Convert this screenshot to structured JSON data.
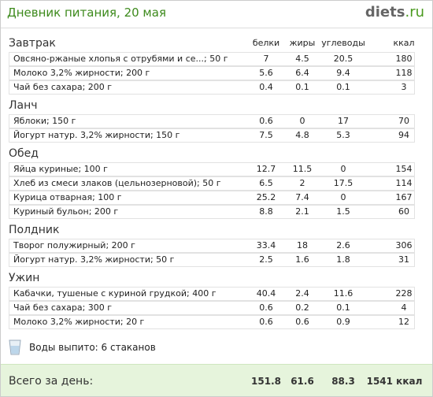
{
  "header": {
    "title": "Дневник питания, 20 мая",
    "logo_main": "diets",
    "logo_tld": ".ru"
  },
  "columns": [
    "белки",
    "жиры",
    "углеводы",
    "ккал"
  ],
  "meals": [
    {
      "name": "Завтрак",
      "items": [
        {
          "food": "Овсяно-ржаные хлопья с отрубями и се...; 50 г",
          "values": [
            "7",
            "4.5",
            "20.5",
            "180"
          ]
        },
        {
          "food": "Молоко 3,2% жирности; 200 г",
          "values": [
            "5.6",
            "6.4",
            "9.4",
            "118"
          ]
        },
        {
          "food": "Чай без сахара; 200 г",
          "values": [
            "0.4",
            "0.1",
            "0.1",
            "3"
          ]
        }
      ]
    },
    {
      "name": "Ланч",
      "items": [
        {
          "food": "Яблоки; 150 г",
          "values": [
            "0.6",
            "0",
            "17",
            "70"
          ]
        },
        {
          "food": "Йогурт натур. 3,2% жирности; 150 г",
          "values": [
            "7.5",
            "4.8",
            "5.3",
            "94"
          ]
        }
      ]
    },
    {
      "name": "Обед",
      "items": [
        {
          "food": "Яйца куриные; 100 г",
          "values": [
            "12.7",
            "11.5",
            "0",
            "154"
          ]
        },
        {
          "food": "Хлеб из смеси злаков (цельнозерновой); 50 г",
          "values": [
            "6.5",
            "2",
            "17.5",
            "114"
          ]
        },
        {
          "food": "Курица отварная; 100 г",
          "values": [
            "25.2",
            "7.4",
            "0",
            "167"
          ]
        },
        {
          "food": "Куриный бульон; 200 г",
          "values": [
            "8.8",
            "2.1",
            "1.5",
            "60"
          ]
        }
      ]
    },
    {
      "name": "Полдник",
      "items": [
        {
          "food": "Творог полужирный; 200 г",
          "values": [
            "33.4",
            "18",
            "2.6",
            "306"
          ]
        },
        {
          "food": "Йогурт натур. 3,2% жирности; 50 г",
          "values": [
            "2.5",
            "1.6",
            "1.8",
            "31"
          ]
        }
      ]
    },
    {
      "name": "Ужин",
      "items": [
        {
          "food": "Кабачки, тушеные с куриной грудкой; 400 г",
          "values": [
            "40.4",
            "2.4",
            "11.6",
            "228"
          ]
        },
        {
          "food": "Чай без сахара; 300 г",
          "values": [
            "0.6",
            "0.2",
            "0.1",
            "4"
          ]
        },
        {
          "food": "Молоко 3,2% жирности; 20 г",
          "values": [
            "0.6",
            "0.6",
            "0.9",
            "12"
          ]
        }
      ]
    }
  ],
  "water": "Воды выпито: 6 стаканов",
  "total": {
    "label": "Всего за день:",
    "values": [
      "151.8",
      "61.6",
      "88.3",
      "1541 ккал"
    ]
  }
}
